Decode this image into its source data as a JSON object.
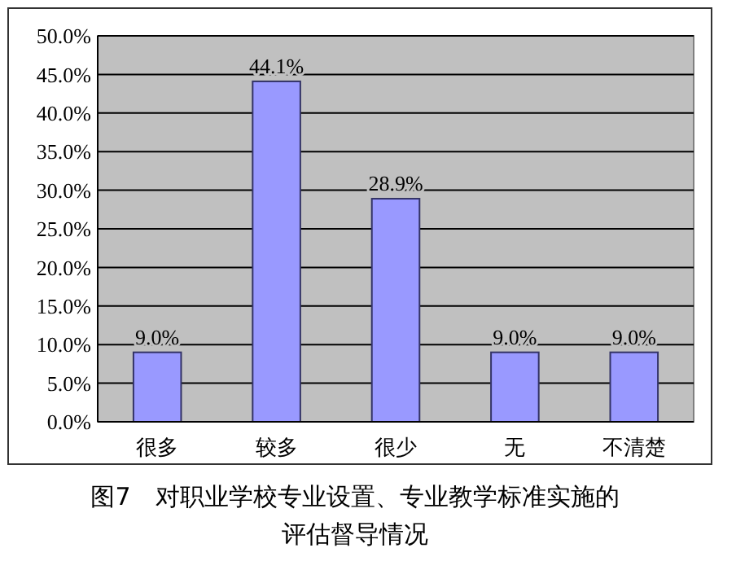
{
  "chart_data": {
    "type": "bar",
    "title": "图7　对职业学校专业设置、专业教学标准实施的评估督导情况",
    "categories": [
      "很多",
      "较多",
      "很少",
      "无",
      "不清楚"
    ],
    "values": [
      9.0,
      44.1,
      28.9,
      9.0,
      9.0
    ],
    "value_labels": [
      "9.0%",
      "44.1%",
      "28.9%",
      "9.0%",
      "9.0%"
    ],
    "color": "#9999ff",
    "ylim": [
      0,
      50
    ],
    "yticks": [
      {
        "value": 0,
        "label": "0.0%"
      },
      {
        "value": 5,
        "label": "5.0%"
      },
      {
        "value": 10,
        "label": "10.0%"
      },
      {
        "value": 15,
        "label": "15.0%"
      },
      {
        "value": 20,
        "label": "20.0%"
      },
      {
        "value": 25,
        "label": "25.0%"
      },
      {
        "value": 30,
        "label": "30.0%"
      },
      {
        "value": 35,
        "label": "35.0%"
      },
      {
        "value": 40,
        "label": "40.0%"
      },
      {
        "value": 45,
        "label": "45.0%"
      },
      {
        "value": 50,
        "label": "50.0%"
      }
    ],
    "grid": "y"
  }
}
